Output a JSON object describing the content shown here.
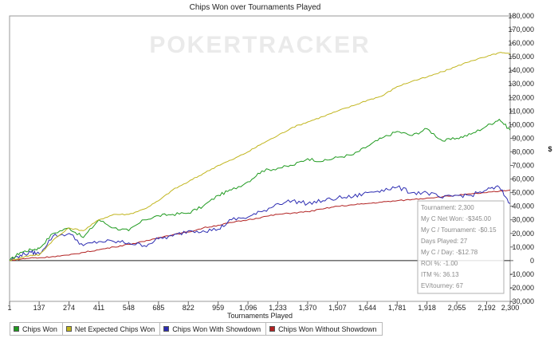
{
  "chart_data": {
    "type": "line",
    "title": "Chips Won over Tournaments Played",
    "xlabel": "Tournaments Played",
    "ylabel": "$",
    "xlim": [
      1,
      2300
    ],
    "ylim": [
      -30000,
      180000
    ],
    "x_ticks": [
      "1",
      "137",
      "274",
      "411",
      "548",
      "685",
      "822",
      "959",
      "1,096",
      "1,233",
      "1,370",
      "1,507",
      "1,644",
      "1,781",
      "1,918",
      "2,055",
      "2,192",
      "2,300"
    ],
    "y_ticks": [
      "180,000",
      "170,000",
      "160,000",
      "150,000",
      "140,000",
      "130,000",
      "120,000",
      "110,000",
      "100,000",
      "90,000",
      "80,000",
      "70,000",
      "60,000",
      "50,000",
      "40,000",
      "30,000",
      "20,000",
      "10,000",
      "0",
      "-10,000",
      "-20,000",
      "-30,000"
    ],
    "watermark": "POKERTRACKER",
    "legend_position": "bottom-left",
    "grid": false,
    "x": [
      1,
      50,
      100,
      137,
      200,
      274,
      340,
      411,
      480,
      548,
      620,
      685,
      750,
      822,
      890,
      959,
      1020,
      1096,
      1160,
      1233,
      1300,
      1370,
      1440,
      1507,
      1580,
      1644,
      1710,
      1781,
      1850,
      1918,
      1990,
      2055,
      2120,
      2192,
      2250,
      2300
    ],
    "series": [
      {
        "name": "Chips Won",
        "color": "#1f9a1f",
        "values": [
          0,
          6000,
          8000,
          9000,
          20000,
          24000,
          17000,
          30000,
          24000,
          22000,
          30000,
          33000,
          34000,
          35000,
          40000,
          48000,
          52000,
          58000,
          66000,
          68000,
          70000,
          75000,
          73000,
          76000,
          78000,
          84000,
          90000,
          95000,
          92000,
          97000,
          88000,
          90000,
          93000,
          99000,
          104000,
          96000
        ]
      },
      {
        "name": "Net Expected Chips Won",
        "color": "#c1b51e",
        "values": [
          0,
          2000,
          4000,
          4000,
          15000,
          24000,
          22000,
          30000,
          34000,
          34000,
          38000,
          44000,
          52000,
          58000,
          64000,
          70000,
          74000,
          80000,
          86000,
          92000,
          98000,
          102000,
          106000,
          110000,
          114000,
          118000,
          121000,
          128000,
          132000,
          135000,
          139000,
          143000,
          147000,
          150000,
          153000,
          152000
        ]
      },
      {
        "name": "Chips Won With Showdown",
        "color": "#2c2cb2",
        "values": [
          0,
          4000,
          6000,
          5000,
          18000,
          20000,
          11000,
          14000,
          14000,
          13000,
          11000,
          16000,
          18000,
          22000,
          22000,
          23000,
          30000,
          32000,
          36000,
          42000,
          44000,
          42000,
          44000,
          46000,
          47000,
          50000,
          52000,
          54000,
          50000,
          50000,
          46000,
          48000,
          48000,
          52000,
          54000,
          42000
        ]
      },
      {
        "name": "Chips Won Without Showdown",
        "color": "#b22222",
        "values": [
          0,
          1000,
          2000,
          2000,
          3000,
          4000,
          6000,
          8000,
          10000,
          12000,
          14000,
          17000,
          19000,
          21000,
          24000,
          26000,
          28000,
          30000,
          32000,
          34000,
          35000,
          36000,
          38000,
          40000,
          41000,
          42000,
          43000,
          44000,
          45000,
          46000,
          47000,
          48000,
          49000,
          50000,
          51000,
          52000
        ]
      }
    ],
    "tooltip": {
      "lines": [
        "Tournament: 2,300",
        "My C Net Won: -$345.00",
        "My C / Tournament: -$0.15",
        "Days Played: 27",
        "My C / Day: -$12.78",
        "ROI %: -1.00",
        "ITM %: 36.13",
        "EV/tourney: 67"
      ]
    }
  }
}
